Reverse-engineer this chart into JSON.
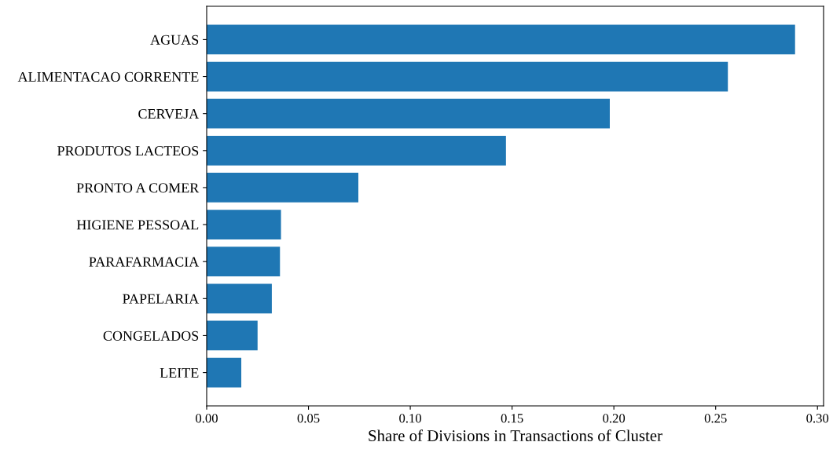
{
  "chart_data": {
    "type": "bar",
    "orientation": "horizontal",
    "xlabel": "Share of Divisions in Transactions of Cluster",
    "categories": [
      "AGUAS",
      "ALIMENTACAO CORRENTE",
      "CERVEJA",
      "PRODUTOS LACTEOS",
      "PRONTO A COMER",
      "HIGIENE PESSOAL",
      "PARAFARMACIA",
      "PAPELARIA",
      "CONGELADOS",
      "LEITE"
    ],
    "values": [
      0.289,
      0.256,
      0.198,
      0.147,
      0.0745,
      0.0365,
      0.036,
      0.032,
      0.025,
      0.017
    ],
    "color": "#1f77b4",
    "xlim": [
      0,
      0.303
    ],
    "xticks": [
      {
        "value": 0,
        "label": "0.00"
      },
      {
        "value": 0.05,
        "label": "0.05"
      },
      {
        "value": 0.1,
        "label": "0.10"
      },
      {
        "value": 0.15,
        "label": "0.15"
      },
      {
        "value": 0.2,
        "label": "0.20"
      },
      {
        "value": 0.25,
        "label": "0.25"
      },
      {
        "value": 0.3,
        "label": "0.30"
      }
    ],
    "grid": false
  }
}
